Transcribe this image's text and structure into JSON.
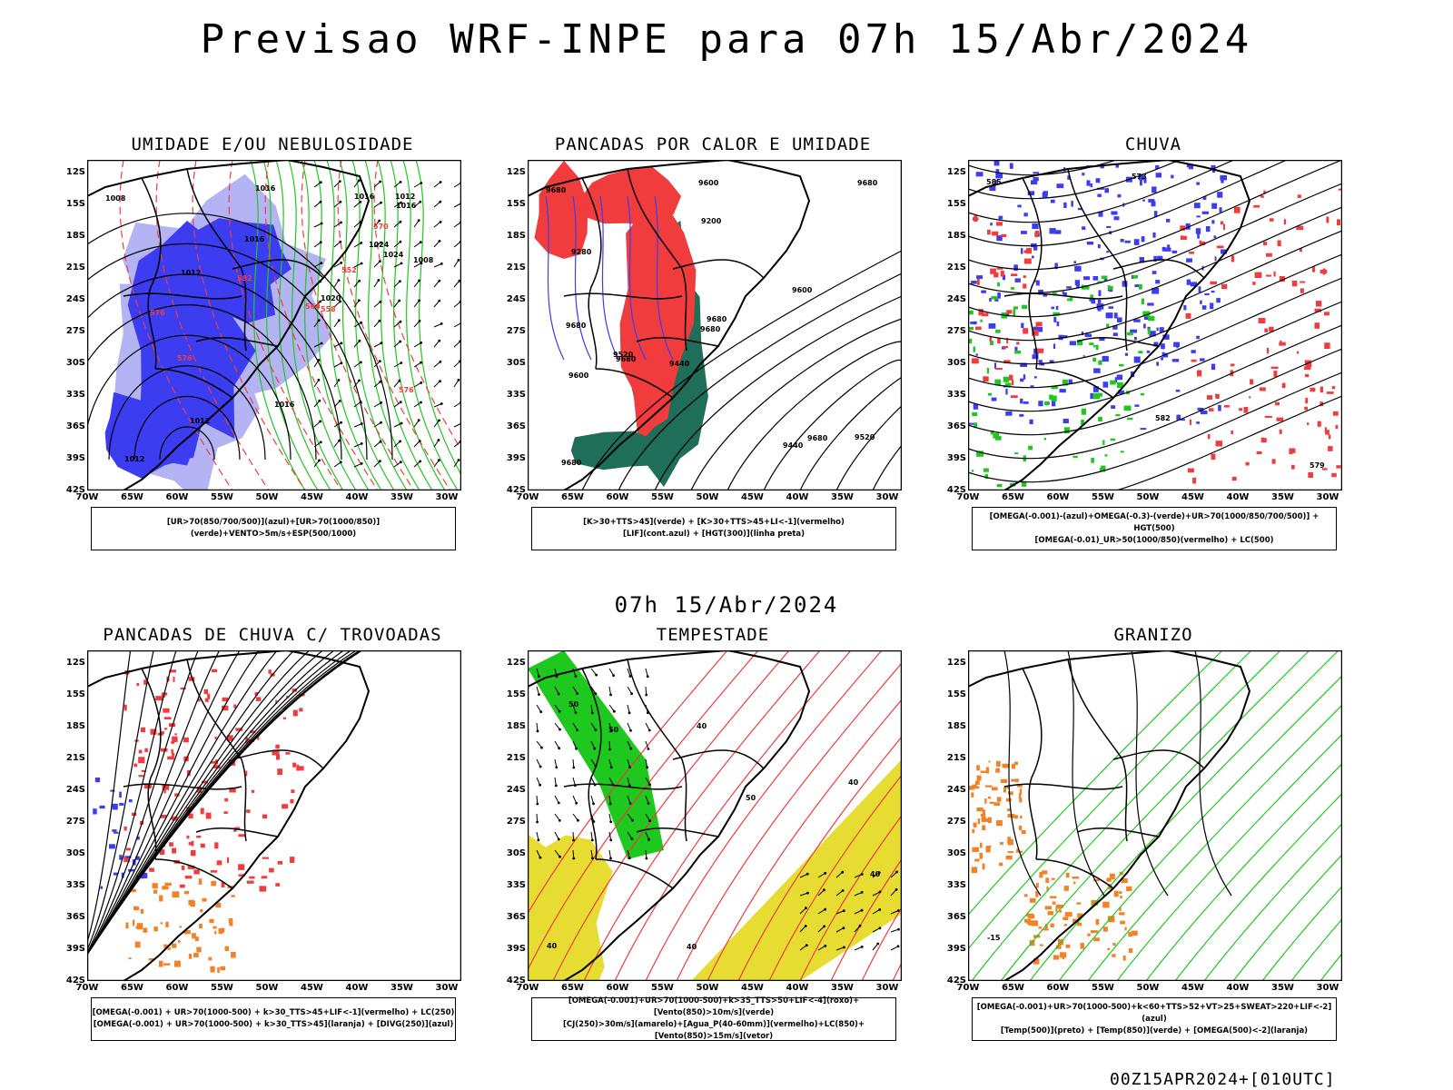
{
  "title": "Previsao WRF-INPE  para 07h 15/Abr/2024",
  "subtitle": "07h 15/Abr/2024",
  "footer": "00Z15APR2024+[010UTC]",
  "lat_labels": [
    "12S",
    "15S",
    "18S",
    "21S",
    "24S",
    "27S",
    "30S",
    "33S",
    "36S",
    "39S",
    "42S"
  ],
  "lon_labels": [
    "70W",
    "65W",
    "60W",
    "55W",
    "50W",
    "45W",
    "40W",
    "35W",
    "30W"
  ],
  "colors": {
    "blue": "#3c3cf0",
    "lightblue": "#b4b4f5",
    "green": "#1ec81e",
    "red": "#f03c3c",
    "darkgreen": "#1f6e5a",
    "yellow": "#e6dc32",
    "orange": "#f08228"
  },
  "panels": [
    {
      "title": "UMIDADE E/OU NEBULOSIDADE",
      "legend": [
        "[UR>70(850/700/500)](azul)+[UR>70(1000/850)](verde)+VENTO>5m/s+ESP(500/1000)"
      ],
      "labels": [
        "1008",
        "1016",
        "1016",
        "1016",
        "1012",
        "1016",
        "1016",
        "1020",
        "1024",
        "1012",
        "1008",
        "1012",
        "1012",
        "1024",
        "576",
        "576",
        "576",
        "570",
        "564",
        "552",
        "558",
        "582"
      ]
    },
    {
      "title": "PANCADAS POR CALOR E UMIDADE",
      "legend": [
        "[K>30+TTS>45](verde) + [K>30+TTS>45+LI<-1](vermelho)",
        "[LIF](cont.azul) + [HGT(300)](linha preta)"
      ],
      "labels": [
        "9680",
        "9680",
        "9600",
        "9680",
        "9680",
        "9680",
        "9680",
        "9680",
        "9440",
        "9520",
        "9600",
        "9200",
        "9280",
        "9440",
        "9520",
        "9600",
        "9680"
      ]
    },
    {
      "title": "CHUVA",
      "legend": [
        "[OMEGA(-0.001)-(azul)+OMEGA(-0.3)-(verde)+UR>70(1000/850/700/500)] + HGT(500)",
        "[OMEGA(-0.01)_UR>50(1000/850)(vermelho) + LC(500)"
      ],
      "labels": [
        "585",
        "582",
        "579",
        "573"
      ]
    },
    {
      "title": "PANCADAS DE CHUVA C/ TROVOADAS",
      "legend": [
        "[OMEGA(-0.001) + UR>70(1000-500) + k>30_TTS>45+LIF<-1](vermelho) + LC(250)",
        "[OMEGA(-0.001) + UR>70(1000-500) + k>30_TTS>45](laranja) + [DIVG(250)](azul)"
      ],
      "labels": []
    },
    {
      "title": "TEMPESTADE",
      "legend": [
        "[OMEGA(-0.001)+UR>70(1000-500)+k>35_TTS>50+LIF<-4](roxo)+[Vento(850)>10m/s](verde)",
        "[CJ(250)>30m/s](amarelo)+[Agua_P(40-60mm)](vermelho)+LC(850)+[Vento(850)>15m/s](vetor)"
      ],
      "labels": [
        "40",
        "50",
        "40",
        "40",
        "50",
        "50",
        "40",
        "40"
      ]
    },
    {
      "title": "GRANIZO",
      "legend": [
        "[OMEGA(-0.001)+UR>70(1000-500)+k<60+TTS>52+VT>25+SWEAT>220+LIF<-2](azul)",
        "[Temp(500)](preto) + [Temp(850)](verde) + [OMEGA(500)<-2](laranja)"
      ],
      "labels": [
        "-15"
      ]
    }
  ]
}
